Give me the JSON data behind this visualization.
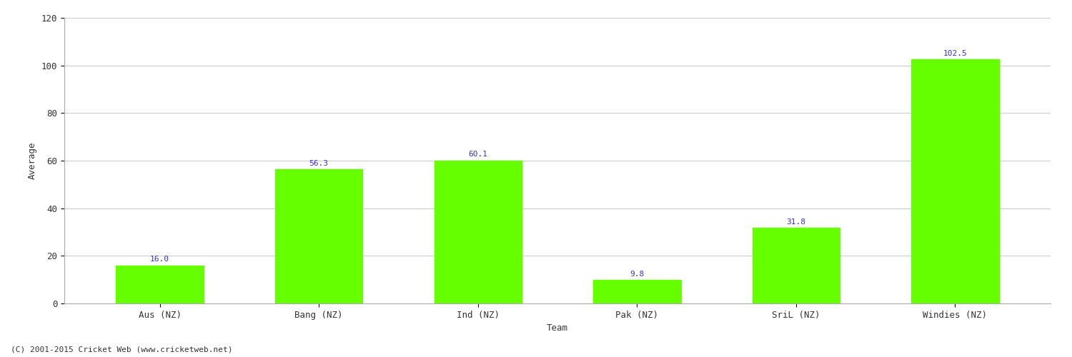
{
  "categories": [
    "Aus (NZ)",
    "Bang (NZ)",
    "Ind (NZ)",
    "Pak (NZ)",
    "SriL (NZ)",
    "Windies (NZ)"
  ],
  "values": [
    16.0,
    56.3,
    60.1,
    9.8,
    31.8,
    102.5
  ],
  "bar_color": "#66ff00",
  "bar_edge_color": "#66ff00",
  "label_color": "#3333cc",
  "xlabel": "Team",
  "ylabel": "Average",
  "ylim": [
    0,
    120
  ],
  "yticks": [
    0,
    20,
    40,
    60,
    80,
    100,
    120
  ],
  "grid_color": "#cccccc",
  "background_color": "#ffffff",
  "footer": "(C) 2001-2015 Cricket Web (www.cricketweb.net)",
  "axis_label_fontsize": 9,
  "tick_fontsize": 9,
  "annotation_fontsize": 8,
  "footer_fontsize": 8,
  "bar_width": 0.55
}
